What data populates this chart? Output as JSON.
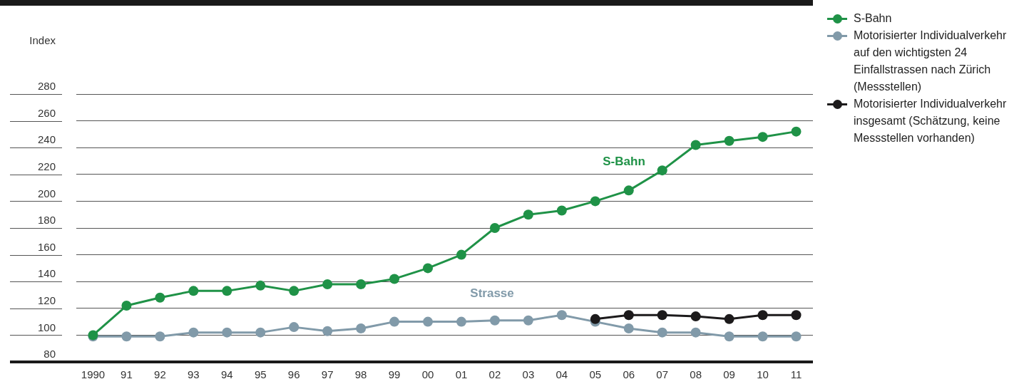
{
  "chart_data": {
    "type": "line",
    "ylabel": "Index",
    "categories": [
      "1990",
      "91",
      "92",
      "93",
      "94",
      "95",
      "96",
      "97",
      "98",
      "99",
      "00",
      "01",
      "02",
      "03",
      "04",
      "05",
      "06",
      "07",
      "08",
      "09",
      "10",
      "11"
    ],
    "series": [
      {
        "name": "S-Bahn",
        "color": "#1f9247",
        "values": [
          100,
          122,
          128,
          133,
          133,
          137,
          133,
          138,
          138,
          142,
          150,
          160,
          180,
          190,
          193,
          200,
          208,
          223,
          242,
          245,
          248,
          252
        ]
      },
      {
        "name": "Motorisierter Individualverkehr auf den wichtigsten 24 Einfallstrassen nach Zürich (Messstellen)",
        "color": "#819aa9",
        "values": [
          99,
          99,
          99,
          102,
          102,
          102,
          106,
          103,
          105,
          110,
          110,
          110,
          111,
          111,
          115,
          110,
          105,
          102,
          102,
          99,
          99,
          99
        ]
      },
      {
        "name": "Motorisierter Individualverkehr insgesamt (Schätzung, keine Messstellen vorhanden)",
        "color": "#1c1a1b",
        "values": [
          null,
          null,
          null,
          null,
          null,
          null,
          null,
          null,
          null,
          null,
          null,
          null,
          null,
          null,
          null,
          112,
          115,
          115,
          114,
          112,
          115,
          115
        ]
      }
    ],
    "ylim": [
      80,
      280
    ],
    "yticks": [
      80,
      100,
      120,
      140,
      160,
      180,
      200,
      220,
      240,
      260,
      280
    ],
    "grid": "y",
    "legend": "top right",
    "marker": "circle",
    "line_style": "solid",
    "annotations": [
      "S-Bahn",
      "Strasse"
    ]
  }
}
